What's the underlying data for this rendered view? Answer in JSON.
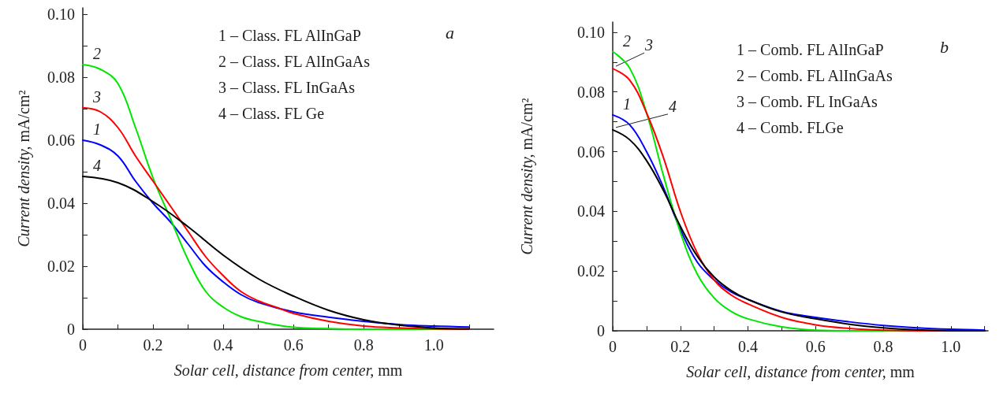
{
  "chart_data": [
    {
      "type": "line",
      "title": "a",
      "xlabel": "Solar cell, distance from center, mm",
      "ylabel": "Current density, mA/cm²",
      "xlim": [
        0,
        1.17
      ],
      "ylim": [
        0,
        0.102
      ],
      "xticks": [
        0,
        {
          "value": 0.1,
          "label": null
        },
        0.2,
        {
          "value": 0.3,
          "label": null
        },
        0.4,
        {
          "value": 0.5,
          "label": null
        },
        0.6,
        {
          "value": 0.7,
          "label": null
        },
        0.8,
        {
          "value": 0.9,
          "label": null
        },
        {
          "value": 1.0,
          "label": "1.0"
        },
        {
          "value": 1.1,
          "label": null
        }
      ],
      "yticks": [
        0,
        {
          "value": 0.01,
          "label": null
        },
        0.02,
        {
          "value": 0.03,
          "label": null
        },
        0.04,
        {
          "value": 0.05,
          "label": null
        },
        0.06,
        {
          "value": 0.07,
          "label": null
        },
        0.08,
        {
          "value": 0.09,
          "label": null
        },
        {
          "value": 0.1,
          "label": "0.10"
        }
      ],
      "grid": false,
      "legend": false,
      "marker": "none",
      "line_style": "solid",
      "annotations": [
        "1 – Class. FL AlInGaP",
        "2 – Class. FL AlInGaAs",
        "3 – Class. FL InGaAs",
        "4 – Class. FL Ge"
      ],
      "series": [
        {
          "name": "1",
          "color": "#0000ff",
          "x": [
            0,
            0.05,
            0.1,
            0.15,
            0.2,
            0.25,
            0.3,
            0.35,
            0.4,
            0.45,
            0.5,
            0.6,
            0.7,
            0.8,
            0.9,
            1.0,
            1.1
          ],
          "values": [
            0.06,
            0.0585,
            0.055,
            0.047,
            0.04,
            0.034,
            0.027,
            0.02,
            0.015,
            0.011,
            0.0085,
            0.0055,
            0.0038,
            0.0025,
            0.0015,
            0.001,
            0.0007
          ]
        },
        {
          "name": "2",
          "color": "#00e600",
          "x": [
            0,
            0.05,
            0.1,
            0.15,
            0.2,
            0.25,
            0.3,
            0.35,
            0.4,
            0.45,
            0.5,
            0.6,
            0.7,
            0.8,
            0.9,
            1.0,
            1.1
          ],
          "values": [
            0.084,
            0.0825,
            0.078,
            0.064,
            0.048,
            0.035,
            0.022,
            0.012,
            0.007,
            0.004,
            0.0025,
            0.0006,
            0.0002,
            0,
            0,
            0,
            0
          ]
        },
        {
          "name": "3",
          "color": "#ff0000",
          "x": [
            0,
            0.05,
            0.1,
            0.15,
            0.2,
            0.25,
            0.3,
            0.35,
            0.4,
            0.45,
            0.5,
            0.55,
            0.6,
            0.7,
            0.8,
            0.9,
            1.0,
            1.1
          ],
          "values": [
            0.0703,
            0.069,
            0.064,
            0.055,
            0.047,
            0.039,
            0.031,
            0.023,
            0.017,
            0.012,
            0.009,
            0.007,
            0.005,
            0.0025,
            0.001,
            0.0004,
            0.0001,
            0
          ]
        },
        {
          "name": "4",
          "color": "#000000",
          "x": [
            0,
            0.1,
            0.2,
            0.3,
            0.4,
            0.5,
            0.6,
            0.7,
            0.8,
            0.9,
            1.0,
            1.1
          ],
          "values": [
            0.0485,
            0.0465,
            0.0405,
            0.0325,
            0.0235,
            0.016,
            0.0105,
            0.006,
            0.003,
            0.0013,
            0.0004,
            0.0001
          ]
        }
      ]
    },
    {
      "type": "line",
      "title": "b",
      "xlabel": "Solar cell, distance from center, mm",
      "ylabel": "Current density, mA/cm²",
      "xlim": [
        0,
        1.11
      ],
      "ylim": [
        0,
        0.1034
      ],
      "xticks": [
        0,
        {
          "value": 0.1,
          "label": null
        },
        0.2,
        {
          "value": 0.3,
          "label": null
        },
        0.4,
        {
          "value": 0.5,
          "label": null
        },
        0.6,
        {
          "value": 0.7,
          "label": null
        },
        0.8,
        {
          "value": 0.9,
          "label": null
        },
        {
          "value": 1.0,
          "label": "1.0"
        },
        {
          "value": 1.1,
          "label": null
        }
      ],
      "yticks": [
        0,
        {
          "value": 0.01,
          "label": null
        },
        0.02,
        {
          "value": 0.03,
          "label": null
        },
        0.04,
        {
          "value": 0.05,
          "label": null
        },
        0.06,
        {
          "value": 0.07,
          "label": null
        },
        0.08,
        {
          "value": 0.09,
          "label": null
        },
        {
          "value": 0.1,
          "label": "0.10"
        }
      ],
      "grid": false,
      "legend": false,
      "marker": "none",
      "line_style": "solid",
      "annotations": [
        "1 – Comb. FL AlInGaP",
        "2 – Comb. FL AlInGaAs",
        "3 – Comb. FL InGaAs",
        "4 – Comb. FLGe"
      ],
      "series": [
        {
          "name": "1",
          "color": "#0000ff",
          "x": [
            0,
            0.05,
            0.1,
            0.15,
            0.2,
            0.25,
            0.3,
            0.35,
            0.4,
            0.5,
            0.6,
            0.7,
            0.8,
            0.9,
            1.0,
            1.1
          ],
          "values": [
            0.0723,
            0.069,
            0.06,
            0.048,
            0.034,
            0.023,
            0.017,
            0.013,
            0.0105,
            0.0065,
            0.0045,
            0.003,
            0.0018,
            0.001,
            0.0005,
            0.0002
          ]
        },
        {
          "name": "2",
          "color": "#00e600",
          "x": [
            0,
            0.05,
            0.1,
            0.15,
            0.2,
            0.25,
            0.3,
            0.35,
            0.4,
            0.5,
            0.6,
            0.7,
            0.8,
            0.9
          ],
          "values": [
            0.0935,
            0.088,
            0.073,
            0.052,
            0.033,
            0.019,
            0.011,
            0.0065,
            0.004,
            0.0013,
            0.0002,
            0,
            0,
            0
          ]
        },
        {
          "name": "3",
          "color": "#ff0000",
          "x": [
            0,
            0.05,
            0.1,
            0.15,
            0.2,
            0.25,
            0.3,
            0.35,
            0.4,
            0.5,
            0.6,
            0.7,
            0.8,
            0.9,
            1.0,
            1.1
          ],
          "values": [
            0.0878,
            0.084,
            0.073,
            0.058,
            0.04,
            0.026,
            0.017,
            0.012,
            0.009,
            0.0045,
            0.002,
            0.0008,
            0.0002,
            0,
            0,
            0
          ]
        },
        {
          "name": "4",
          "color": "#000000",
          "x": [
            0,
            0.05,
            0.1,
            0.15,
            0.2,
            0.25,
            0.3,
            0.35,
            0.4,
            0.5,
            0.6,
            0.7,
            0.8,
            0.9,
            1.0,
            1.1
          ],
          "values": [
            0.0673,
            0.064,
            0.057,
            0.047,
            0.035,
            0.025,
            0.018,
            0.0135,
            0.0105,
            0.0063,
            0.004,
            0.0022,
            0.001,
            0.0003,
            0,
            0
          ]
        }
      ]
    }
  ]
}
